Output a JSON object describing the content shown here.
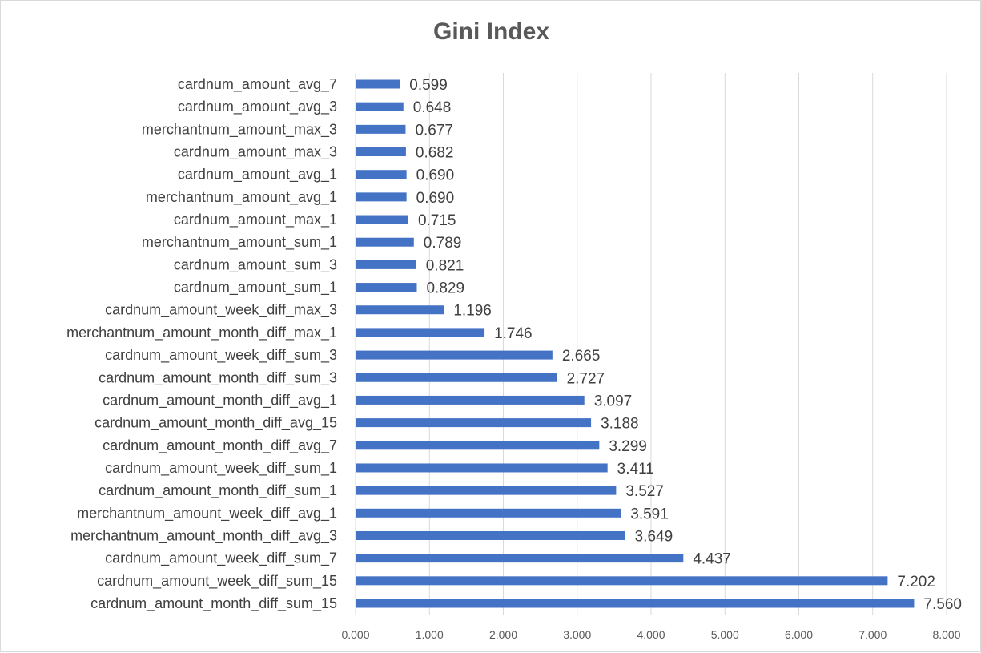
{
  "chart_data": {
    "type": "bar",
    "orientation": "horizontal",
    "title": "Gini Index",
    "xlabel": "",
    "ylabel": "",
    "xlim": [
      0,
      8
    ],
    "x_ticks": [
      "0.000",
      "1.000",
      "2.000",
      "3.000",
      "4.000",
      "5.000",
      "6.000",
      "7.000",
      "8.000"
    ],
    "grid": "vertical",
    "legend": "none",
    "bar_color": "#4472c4",
    "categories": [
      "cardnum_amount_avg_7",
      "cardnum_amount_avg_3",
      "merchantnum_amount_max_3",
      "cardnum_amount_max_3",
      "cardnum_amount_avg_1",
      "merchantnum_amount_avg_1",
      "cardnum_amount_max_1",
      "merchantnum_amount_sum_1",
      "cardnum_amount_sum_3",
      "cardnum_amount_sum_1",
      "cardnum_amount_week_diff_max_3",
      "merchantnum_amount_month_diff_max_1",
      "cardnum_amount_week_diff_sum_3",
      "cardnum_amount_month_diff_sum_3",
      "cardnum_amount_month_diff_avg_1",
      "cardnum_amount_month_diff_avg_15",
      "cardnum_amount_month_diff_avg_7",
      "cardnum_amount_week_diff_sum_1",
      "cardnum_amount_month_diff_sum_1",
      "merchantnum_amount_week_diff_avg_1",
      "merchantnum_amount_month_diff_avg_3",
      "cardnum_amount_week_diff_sum_7",
      "cardnum_amount_week_diff_sum_15",
      "cardnum_amount_month_diff_sum_15"
    ],
    "values": [
      0.599,
      0.648,
      0.677,
      0.682,
      0.69,
      0.69,
      0.715,
      0.789,
      0.821,
      0.829,
      1.196,
      1.746,
      2.665,
      2.727,
      3.097,
      3.188,
      3.299,
      3.411,
      3.527,
      3.591,
      3.649,
      4.437,
      7.202,
      7.56
    ],
    "value_labels": [
      "0.599",
      "0.648",
      "0.677",
      "0.682",
      "0.690",
      "0.690",
      "0.715",
      "0.789",
      "0.821",
      "0.829",
      "1.196",
      "1.746",
      "2.665",
      "2.727",
      "3.097",
      "3.188",
      "3.299",
      "3.411",
      "3.527",
      "3.591",
      "3.649",
      "4.437",
      "7.202",
      "7.560"
    ]
  }
}
